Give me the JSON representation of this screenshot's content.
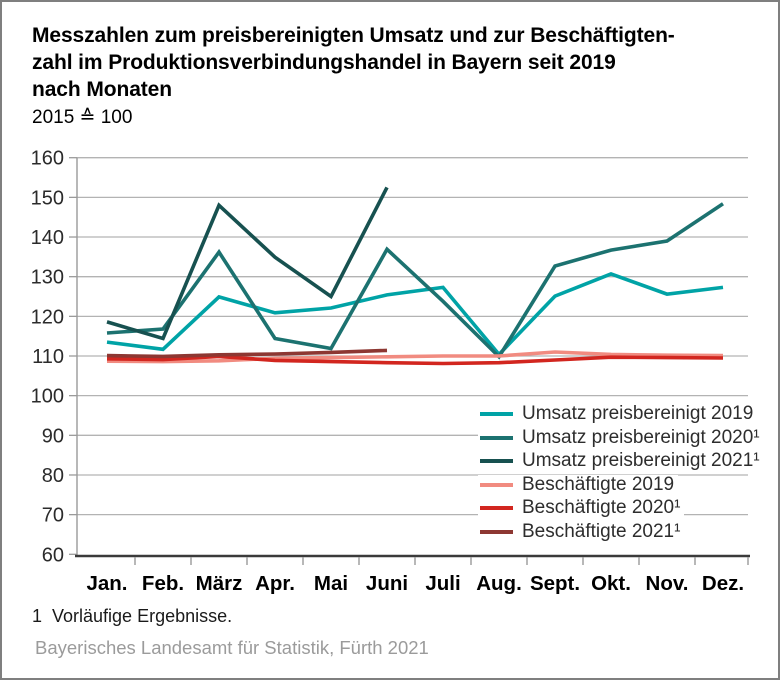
{
  "header": {
    "title": "Messzahlen zum preisbereinigten Umsatz und zur Beschäftigten-\nzahl im Produktionsverbindungshandel in Bayern seit 2019\nnach Monaten",
    "subtitle": "2015 ≙ 100"
  },
  "chart_data": {
    "type": "line",
    "categories": [
      "Jan.",
      "Feb.",
      "März",
      "Apr.",
      "Mai",
      "Juni",
      "Juli",
      "Aug.",
      "Sept.",
      "Okt.",
      "Nov.",
      "Dez."
    ],
    "ylim": [
      60,
      160
    ],
    "ytick_step": 10,
    "grid": true,
    "legend_position": "inside-lower-right",
    "series": [
      {
        "name": "Umsatz preisbereinigt 2019",
        "color": "#00a3a6",
        "values": [
          113.5,
          111.7,
          124.9,
          120.9,
          122.1,
          125.4,
          127.3,
          110.4,
          125.1,
          130.7,
          125.6,
          127.3
        ]
      },
      {
        "name": "Umsatz preisbereinigt 2020¹",
        "color": "#1c7270",
        "values": [
          115.8,
          116.8,
          136.2,
          114.4,
          111.9,
          136.9,
          123.8,
          109.8,
          132.7,
          136.7,
          139.0,
          148.4
        ]
      },
      {
        "name": "Umsatz preisbereinigt 2021¹",
        "color": "#175150",
        "values": [
          118.6,
          114.4,
          148.0,
          134.9,
          125.0,
          152.5,
          null,
          null,
          null,
          null,
          null,
          null
        ]
      },
      {
        "name": "Beschäftigte 2019",
        "color": "#f18b80",
        "values": [
          108.7,
          108.6,
          108.8,
          109.4,
          109.6,
          109.8,
          110.0,
          110.0,
          111.0,
          110.4,
          110.2,
          110.1
        ]
      },
      {
        "name": "Beschäftigte 2020¹",
        "color": "#d2261f",
        "values": [
          109.3,
          109.1,
          109.9,
          108.9,
          108.6,
          108.3,
          108.1,
          108.3,
          109.0,
          109.7,
          109.6,
          109.5
        ]
      },
      {
        "name": "Beschäftigte 2021¹",
        "color": "#8d3732",
        "values": [
          110.1,
          109.9,
          110.3,
          110.5,
          110.9,
          111.4,
          null,
          null,
          null,
          null,
          null,
          null
        ]
      }
    ]
  },
  "colors": {
    "grid": "#b3b3b3",
    "y_axis": "#9a9a9a",
    "x_axis": "#3a3a3a",
    "tick": "#9a9a9a",
    "y_label": "#2b2b2b",
    "x_label": "#000000"
  },
  "footnote": "1  Vorläufige Ergebnisse.",
  "source": "Bayerisches Landesamt für Statistik, Fürth 2021"
}
